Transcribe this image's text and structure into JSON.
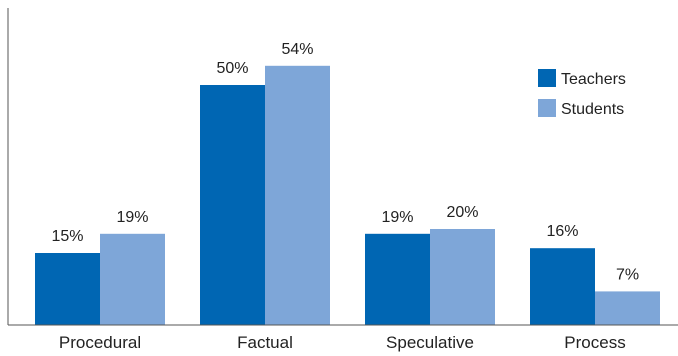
{
  "chart_data": {
    "type": "bar",
    "categories": [
      "Procedural",
      "Factual",
      "Speculative",
      "Process"
    ],
    "series": [
      {
        "name": "Teachers",
        "values": [
          15,
          50,
          19,
          16
        ],
        "labels": [
          "15%",
          "50%",
          "19%",
          "16%"
        ],
        "color": "#0066b3"
      },
      {
        "name": "Students",
        "values": [
          19,
          54,
          20,
          7
        ],
        "labels": [
          "19%",
          "54%",
          "20%",
          "7%"
        ],
        "color": "#7ea6d8"
      }
    ],
    "ylim": [
      0,
      60
    ],
    "grid": false,
    "legend_position": "top-right"
  }
}
